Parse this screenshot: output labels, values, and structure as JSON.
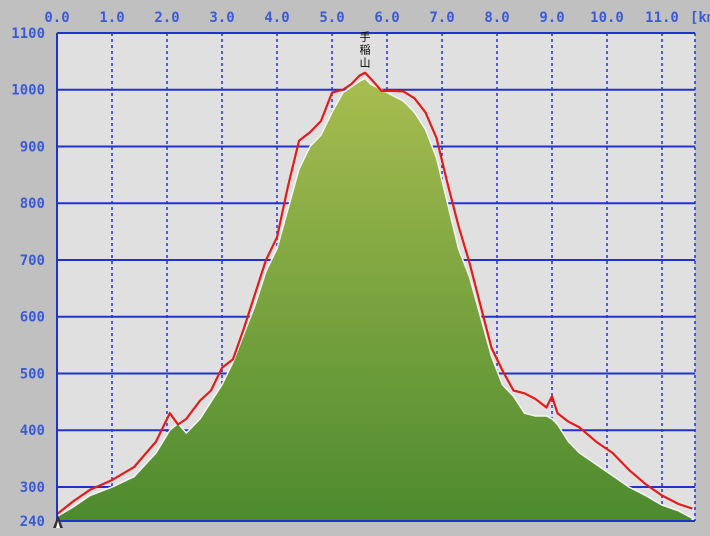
{
  "chart_data": {
    "type": "area",
    "title": "",
    "xlabel": "",
    "ylabel": "",
    "x_unit": "[km]",
    "xlim": [
      0.0,
      11.6
    ],
    "ylim": [
      240,
      1100
    ],
    "x_ticks": [
      0.0,
      1.0,
      2.0,
      3.0,
      4.0,
      5.0,
      6.0,
      7.0,
      8.0,
      9.0,
      10.0,
      11.0
    ],
    "x_tick_labels": [
      "0.0",
      "1.0",
      "2.0",
      "3.0",
      "4.0",
      "5.0",
      "6.0",
      "7.0",
      "8.0",
      "9.0",
      "10.0",
      "11.0"
    ],
    "y_ticks": [
      300,
      400,
      500,
      600,
      700,
      800,
      900,
      1000,
      1100
    ],
    "y_tick_labels": [
      "300",
      "400",
      "500",
      "600",
      "700",
      "800",
      "900",
      "1000",
      "1100"
    ],
    "y_bottom_label": "240",
    "grid": true,
    "colors": {
      "plot_background": "#e0e0e0",
      "grid": "#2233cc",
      "fill_top": "#a7bd50",
      "fill_bottom": "#4d8a2e",
      "line": "#e31b1b",
      "axis_text": "#3b5bd6"
    },
    "series": [
      {
        "kind": "area",
        "x": [
          0.0,
          0.3,
          0.6,
          1.0,
          1.4,
          1.8,
          2.05,
          2.2,
          2.35,
          2.6,
          2.8,
          3.0,
          3.2,
          3.4,
          3.6,
          3.8,
          4.0,
          4.2,
          4.4,
          4.6,
          4.8,
          5.0,
          5.2,
          5.35,
          5.5,
          5.6,
          5.7,
          5.9,
          6.1,
          6.3,
          6.5,
          6.7,
          6.9,
          7.1,
          7.3,
          7.5,
          7.7,
          7.9,
          8.1,
          8.3,
          8.5,
          8.7,
          8.9,
          9.0,
          9.1,
          9.3,
          9.5,
          9.8,
          10.1,
          10.4,
          10.7,
          11.0,
          11.3,
          11.55
        ],
        "y": [
          248,
          265,
          285,
          300,
          318,
          360,
          400,
          412,
          395,
          420,
          450,
          480,
          520,
          570,
          620,
          680,
          720,
          790,
          860,
          900,
          920,
          960,
          995,
          1005,
          1015,
          1020,
          1010,
          1000,
          990,
          980,
          960,
          930,
          880,
          800,
          720,
          670,
          600,
          530,
          480,
          460,
          430,
          425,
          425,
          420,
          410,
          380,
          360,
          340,
          320,
          300,
          285,
          268,
          258,
          245
        ]
      },
      {
        "kind": "line",
        "x": [
          0.0,
          0.3,
          0.6,
          1.0,
          1.4,
          1.8,
          2.05,
          2.2,
          2.35,
          2.6,
          2.8,
          3.0,
          3.2,
          3.4,
          3.6,
          3.8,
          4.0,
          4.2,
          4.4,
          4.6,
          4.8,
          5.0,
          5.2,
          5.35,
          5.5,
          5.6,
          5.7,
          5.9,
          6.1,
          6.3,
          6.5,
          6.7,
          6.9,
          7.1,
          7.3,
          7.5,
          7.7,
          7.9,
          8.1,
          8.3,
          8.5,
          8.7,
          8.9,
          9.0,
          9.1,
          9.3,
          9.5,
          9.8,
          10.1,
          10.4,
          10.7,
          11.0,
          11.3,
          11.55
        ],
        "y": [
          252,
          275,
          295,
          312,
          335,
          380,
          430,
          410,
          420,
          452,
          470,
          510,
          525,
          580,
          640,
          700,
          740,
          830,
          910,
          925,
          945,
          995,
          1000,
          1010,
          1025,
          1030,
          1020,
          998,
          998,
          997,
          985,
          960,
          915,
          835,
          760,
          695,
          620,
          545,
          505,
          470,
          465,
          455,
          440,
          460,
          430,
          415,
          405,
          380,
          360,
          330,
          305,
          285,
          270,
          262
        ]
      }
    ],
    "annotations": [
      {
        "text": "手稲山",
        "x": 5.6,
        "y": 1030
      }
    ]
  }
}
